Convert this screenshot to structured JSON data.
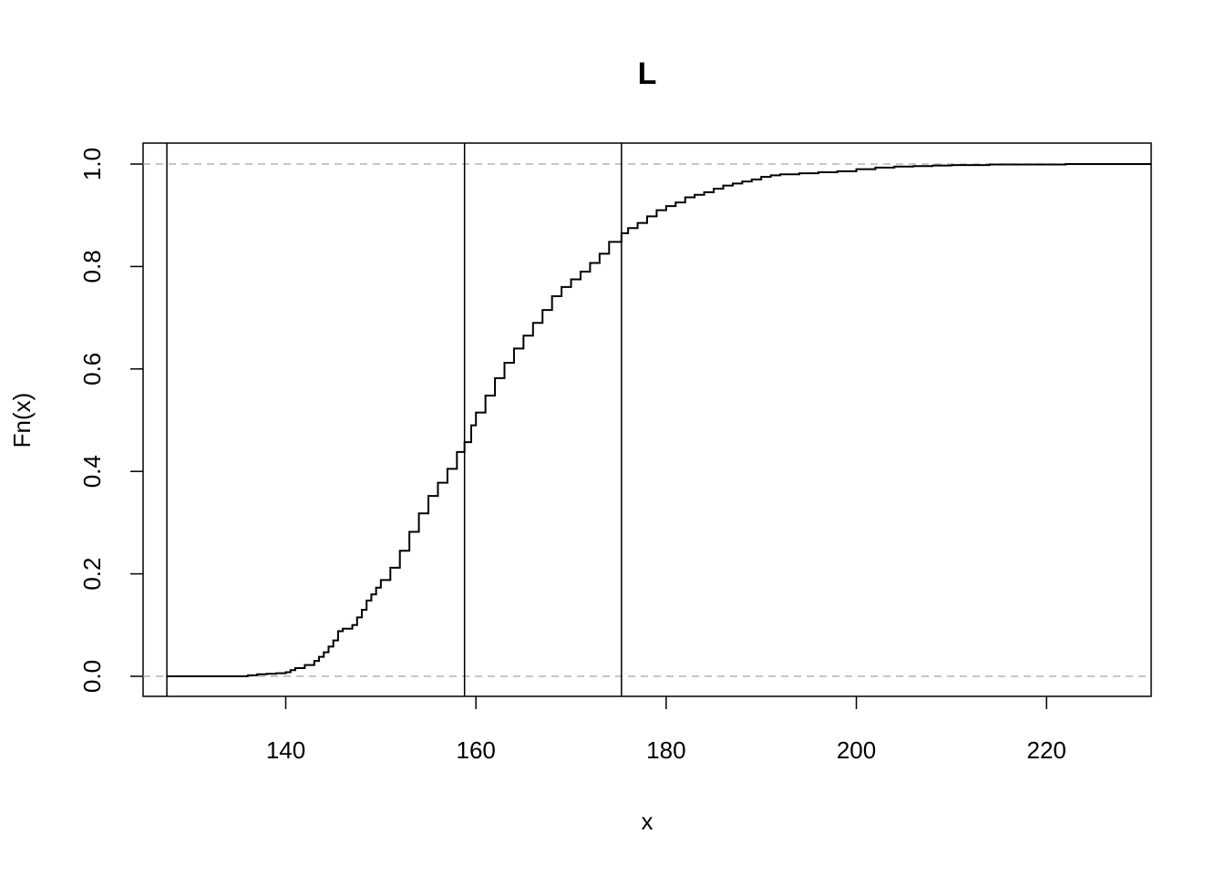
{
  "chart_data": {
    "type": "line",
    "title": "L",
    "xlabel": "x",
    "ylabel": "Fn(x)",
    "xlim": [
      125,
      231
    ],
    "ylim": [
      0,
      1
    ],
    "x_ticks": [
      140,
      160,
      180,
      200,
      220
    ],
    "y_ticks": [
      0.0,
      0.2,
      0.4,
      0.6,
      0.8,
      1.0
    ],
    "x_tick_labels": [
      "140",
      "160",
      "180",
      "200",
      "220"
    ],
    "y_tick_labels": [
      "0.0",
      "0.2",
      "0.4",
      "0.6",
      "0.8",
      "1.0"
    ],
    "grid": false,
    "reference_hlines": [
      0,
      1
    ],
    "vertical_lines": [
      127.5,
      158.8,
      175.3
    ],
    "series": [
      {
        "step": true,
        "x": [
          127.5,
          134,
          136,
          137,
          138,
          139,
          140,
          140.5,
          141,
          142,
          143,
          143.5,
          144,
          144.5,
          145,
          145.5,
          146,
          147,
          147.5,
          148,
          148.5,
          149,
          149.5,
          150,
          151,
          152,
          153,
          154,
          155,
          156,
          157,
          158,
          158.8,
          159.5,
          160,
          161,
          162,
          163,
          164,
          165,
          166,
          167,
          168,
          169,
          170,
          171,
          172,
          173,
          174,
          175.3,
          176,
          177,
          178,
          179,
          180,
          181,
          182,
          183,
          184,
          185,
          186,
          187,
          188,
          189,
          190,
          191,
          192,
          194,
          196,
          198,
          200,
          202,
          204,
          206,
          208,
          210,
          214,
          218,
          222,
          231
        ],
        "y": [
          0.0,
          0.0,
          0.002,
          0.004,
          0.005,
          0.006,
          0.008,
          0.012,
          0.016,
          0.022,
          0.03,
          0.038,
          0.047,
          0.058,
          0.07,
          0.088,
          0.093,
          0.1,
          0.115,
          0.13,
          0.148,
          0.16,
          0.173,
          0.188,
          0.212,
          0.245,
          0.282,
          0.318,
          0.352,
          0.378,
          0.405,
          0.438,
          0.457,
          0.49,
          0.515,
          0.548,
          0.582,
          0.612,
          0.64,
          0.665,
          0.69,
          0.715,
          0.742,
          0.76,
          0.775,
          0.79,
          0.807,
          0.825,
          0.848,
          0.865,
          0.875,
          0.885,
          0.898,
          0.91,
          0.918,
          0.925,
          0.935,
          0.94,
          0.945,
          0.952,
          0.958,
          0.962,
          0.966,
          0.97,
          0.975,
          0.978,
          0.98,
          0.982,
          0.984,
          0.986,
          0.99,
          0.993,
          0.995,
          0.996,
          0.997,
          0.998,
          0.999,
          0.999,
          1.0,
          1.0
        ]
      }
    ]
  }
}
